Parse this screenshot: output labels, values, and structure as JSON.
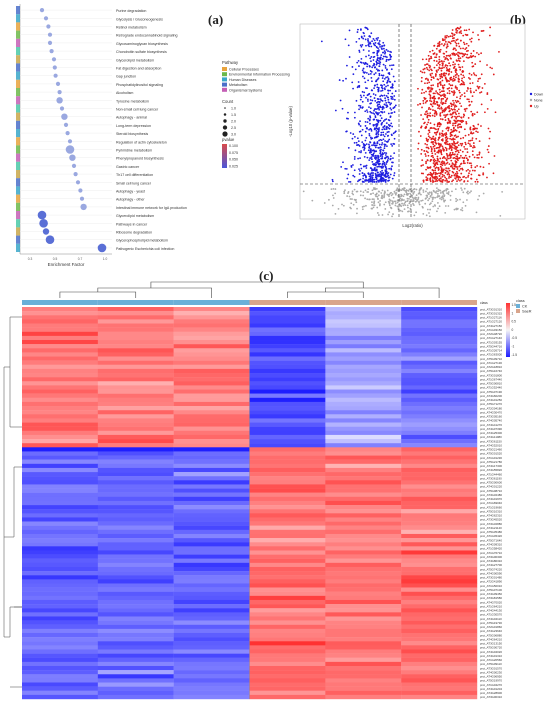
{
  "labels": {
    "a": "(a)",
    "b": "(b)",
    "c": "(c)"
  },
  "panel_a": {
    "xlabel": "Enrichment Factor",
    "terms": [
      "Purine degradation",
      "Glycolysis / Gluconeogenesis",
      "Retinol metabolism",
      "Retrograde endocannabinoid signaling",
      "Glycosaminoglycan biosynthesis",
      "Chondroitin sulfate biosynthesis",
      "Glycerolipid metabolism",
      "Fat digestion and absorption",
      "Gap junction",
      "Phosphatidylinositol signaling",
      "Alcoholism",
      "Tyrosine metabolism",
      "Non-small cell lung cancer",
      "Autophagy - animal",
      "Long-term depression",
      "Steroid biosynthesis",
      "Regulation of actin cytoskeleton",
      "Pyrimidine metabolism",
      "Phenylpropanoid biosynthesis",
      "Gastric cancer",
      "Th17 cell differentiation",
      "Small cell lung cancer",
      "Autophagy - yeast",
      "Autophagy - other",
      "Intestinal immune network for IgA production",
      "Glycerolipid metabolism",
      "Pathways in cancer",
      "Ribosome degradation",
      "Glycerophospholipid metabolism",
      "Pathogenic Escherichia coli infection"
    ],
    "legend_pathway_title": "Pathway",
    "legend_pathway": [
      {
        "name": "Cellular Processes",
        "color": "#e8a33d"
      },
      {
        "name": "Environmental Information Processing",
        "color": "#6cb84a"
      },
      {
        "name": "Human Diseases",
        "color": "#3aa7c9"
      },
      {
        "name": "Metabolism",
        "color": "#4a6fc9"
      },
      {
        "name": "Organismal Systems",
        "color": "#c45fb5"
      }
    ],
    "legend_count_title": "Count",
    "legend_count": [
      "1.0",
      "1.5",
      "2.0",
      "2.5",
      "3.0"
    ],
    "legend_p_title": "pvalue",
    "legend_p": [
      "0.100",
      "0.075",
      "0.050",
      "0.025"
    ]
  },
  "panel_b": {
    "xlabel": "Log2(ratio)",
    "ylabel": "-Log10 (p-value)",
    "legend": [
      {
        "name": "Down",
        "color": "#1f1fe0"
      },
      {
        "name": "None",
        "color": "#aaaaaa"
      },
      {
        "name": "Up",
        "color": "#e01f1f"
      }
    ]
  },
  "panel_c": {
    "legend_title": "class",
    "legend_classes": [
      {
        "name": "CK",
        "color": "#6ab0d8"
      },
      {
        "name": "SaeR",
        "color": "#d9a58c"
      }
    ],
    "scale": [
      "1.5",
      "1",
      "0.5",
      "0",
      "-0.5",
      "-1",
      "-1.5"
    ],
    "row_header": "class",
    "rows": [
      "prot_AT3G01310",
      "prot_AT3G01315",
      "prot_AT1G27116",
      "prot_AT1G27120",
      "prot_AT4G27150",
      "prot_AT1G03150",
      "prot_AT2G48720",
      "prot_AT1G27140",
      "prot_AT1G03155",
      "prot_AT5G44716",
      "prot_AT1G26714",
      "prot_AT1G63000",
      "prot_AT5G09710",
      "prot_AT1G27130",
      "prot_AT2G18810",
      "prot_AT5G16740",
      "prot_AT3G01800",
      "prot_AT1G67440",
      "prot_AT5G00810",
      "prot_AT1G52440",
      "prot_AT5G07190",
      "prot_AT4G60200",
      "prot_AT4G01250",
      "prot_AT5G71270",
      "prot_AT2G04180",
      "prot_AT4G30470",
      "prot_AT3G05160",
      "prot_AT4G05740",
      "prot_AT4G41270",
      "prot_AT4G07390",
      "prot_AT4G25300",
      "prot_AT4G11080",
      "prot_AT3G61150",
      "prot_AT4G52010",
      "prot_AT5G21460",
      "prot_AT5G01520",
      "prot_AT1G01230",
      "prot_AT5G21780",
      "prot_AT4G17300",
      "prot_AT4G55820",
      "prot_AT1G44460",
      "prot_AT3G61190",
      "prot_AT5G00600",
      "prot_AT4G01220",
      "prot_AT5G08710",
      "prot_AT3G32480",
      "prot_AT4G01970",
      "prot_AT1G69040",
      "prot_AT1G19660",
      "prot_AT5G10310",
      "prot_AT4G62310",
      "prot_AT3G45520",
      "prot_AT3G32880",
      "prot_AT4G21140",
      "prot_AT5G35480",
      "prot_AT1G45420",
      "prot_AT5G71640",
      "prot_AT4G09310",
      "prot_AT1G58420",
      "prot_AT1G76710",
      "prot_AT3G00300",
      "prot_AT4G80310",
      "prot_AT4G27700",
      "prot_AT5G74220",
      "prot_AT4G00590",
      "prot_AT3G01480",
      "prot_AT2G41890",
      "prot_AT1G50010",
      "prot_AT5G07100",
      "prot_AT4G09450",
      "prot_AT3G81580",
      "prot_AT4G70020",
      "prot_AT1G64210",
      "prot_AT4G44130",
      "prot_AT1G30570",
      "prot_AT4G04110",
      "prot_AT5G19730",
      "prot_AT2G01860",
      "prot_AT4G23640",
      "prot_AT5G06880",
      "prot_AT4G64210",
      "prot_AT3G13150",
      "prot_AT5G00720",
      "prot_AT4G04020",
      "prot_AT4G01310",
      "prot_AT1G20560",
      "prot_AT5G09110",
      "prot_AT3G01570",
      "prot_AT4G00230",
      "prot_AT4G06950",
      "prot_AT5G19970",
      "prot_AT1G04270",
      "prot_AT4G01204",
      "prot_AT4G28900",
      "prot_AT3G00310"
    ]
  }
}
